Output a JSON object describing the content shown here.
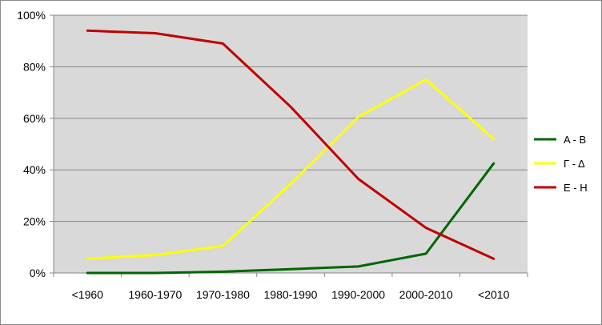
{
  "chart_data": {
    "type": "line",
    "categories": [
      "<1960",
      "1960-1970",
      "1970-1980",
      "1980-1990",
      "1990-2000",
      "2000-2010",
      "<2010"
    ],
    "series": [
      {
        "name": "Α - Β",
        "color": "#006600",
        "values": [
          0,
          0,
          0.5,
          1.5,
          2.5,
          7.5,
          42.5
        ]
      },
      {
        "name": "Γ - Δ",
        "color": "#ffff00",
        "values": [
          5.5,
          7,
          10.5,
          34.5,
          60.5,
          75,
          52
        ]
      },
      {
        "name": "Ε - Η",
        "color": "#c00000",
        "values": [
          94,
          93,
          89,
          64.5,
          36.5,
          17.5,
          5.5
        ]
      }
    ],
    "ylim": [
      0,
      100
    ],
    "yticks": [
      "0%",
      "20%",
      "40%",
      "60%",
      "80%",
      "100%"
    ],
    "ytick_values": [
      0,
      20,
      40,
      60,
      80,
      100
    ],
    "grid": true,
    "legend_position": "right",
    "plot_background": "#d9d9d9"
  }
}
